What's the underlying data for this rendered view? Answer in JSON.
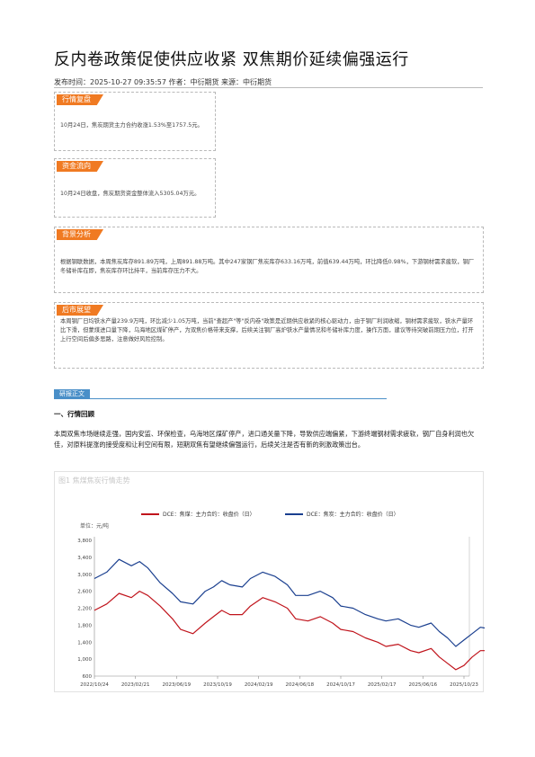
{
  "title": "反内卷政策促使供应收紧 双焦期价延续偏强运行",
  "meta": "发布时间：2025-10-27 09:35:57 作者：中衍期货 来源：中衍期货",
  "boxes": {
    "market_review": {
      "tag": "行情复盘",
      "text": "10月24日，焦炭期货主力合约收涨1.53%至1757.5元。"
    },
    "capital_flow": {
      "tag": "资金流向",
      "text": "10月24日收盘，焦炭期货资金整体流入5305.04万元。"
    },
    "background": {
      "tag": "背景分析",
      "text": "根据钢联数据，本周焦炭库存891.89万吨，上周891.88万吨。其中247家钢厂焦炭库存633.16万吨，前值639.44万吨，环比降低0.98%，下游钢材需求疲软，钢厂冬储补库在即，焦炭库存环比持平，当前库存压力不大。"
    },
    "outlook": {
      "tag": "后市展望",
      "text": "本周钢厂日均铁水产量239.9万吨，环比减少1.05万吨，当前\"查超产\"等\"反内卷\"政策是近期供应收紧的核心驱动力，由于钢厂利润收缩，钢材需求疲软，铁水产量环比下滑，但蒙煤进口量下降，乌海地区煤矿停产，为双焦价格带来支撑，后续关注钢厂高炉铁水产量情况和冬储补库力度，操作方面，建议等待突破前期压力位，打开上行空间后偏多思路，注意做好风险控制。"
    }
  },
  "section_tab": "研报正文",
  "section_title": "一、行情回顾",
  "body": "本周双焦市场继续走强，国内安监、环保检查，乌海地区煤矿停产，进口通关量下降，导致供应端偏紧，下游终端钢材需求疲软，钢厂自身利润也欠佳，对原料提涨的接受度和让利空间有限，短期双焦有望继续偏强运行，后续关注是否有新的刺激政策出台。",
  "chart_data": {
    "type": "line",
    "title": "图1 焦煤焦炭行情走势",
    "unit_label": "单位：元/吨",
    "x_tick_labels": [
      "2022/10/24",
      "2023/02/21",
      "2023/06/19",
      "2023/10/19",
      "2024/02/19",
      "2024/06/18",
      "2024/10/17",
      "2025/02/17",
      "2025/06/16",
      "2025/10/23"
    ],
    "ylim": [
      600,
      3800
    ],
    "y_tick_labels": [
      "600",
      "800",
      "1,000",
      "1,200",
      "1,400",
      "1,600",
      "1,800",
      "2,000",
      "2,200",
      "2,400",
      "2,600",
      "2,800",
      "3,000",
      "3,200",
      "3,400",
      "3,600",
      "3,800"
    ],
    "grid": false,
    "legend_position": "top",
    "series": [
      {
        "name": "DCE：焦煤：主力合约：收盘价（日）",
        "color": "#c0141c",
        "x_ticks": [
          0,
          0.3,
          0.6,
          0.9,
          1.1,
          1.3,
          1.6,
          1.9,
          2.1,
          2.4,
          2.7,
          2.9,
          3.1,
          3.3,
          3.6,
          3.8,
          4.1,
          4.4,
          4.7,
          4.9,
          5.2,
          5.5,
          5.8,
          6.0,
          6.3,
          6.6,
          6.9,
          7.1,
          7.4,
          7.7,
          7.9,
          8.2,
          8.4,
          8.6,
          8.8,
          9.0,
          9.2,
          9.4,
          9.7,
          10.0
        ],
        "values": [
          2150,
          2300,
          2550,
          2450,
          2600,
          2500,
          2250,
          1950,
          1700,
          1600,
          1850,
          2000,
          2150,
          2050,
          2050,
          2250,
          2450,
          2350,
          2200,
          1950,
          1900,
          2000,
          1850,
          1700,
          1650,
          1500,
          1400,
          1300,
          1350,
          1200,
          1150,
          1250,
          1050,
          900,
          750,
          850,
          1050,
          1200,
          1200,
          1300
        ]
      },
      {
        "name": "DCE：焦炭：主力合约：收盘价（日）",
        "color": "#1a3f8f",
        "x_ticks": [
          0,
          0.3,
          0.6,
          0.9,
          1.1,
          1.3,
          1.6,
          1.9,
          2.1,
          2.4,
          2.7,
          2.9,
          3.1,
          3.3,
          3.6,
          3.8,
          4.1,
          4.4,
          4.7,
          4.9,
          5.2,
          5.5,
          5.8,
          6.0,
          6.3,
          6.6,
          6.9,
          7.1,
          7.4,
          7.7,
          7.9,
          8.2,
          8.4,
          8.6,
          8.8,
          9.0,
          9.2,
          9.4,
          9.7,
          10.0
        ],
        "values": [
          2900,
          3050,
          3350,
          3200,
          3300,
          3150,
          2800,
          2550,
          2350,
          2300,
          2600,
          2700,
          2850,
          2750,
          2700,
          2900,
          3050,
          2950,
          2750,
          2500,
          2500,
          2600,
          2450,
          2250,
          2200,
          2050,
          1950,
          1900,
          1950,
          1800,
          1750,
          1850,
          1650,
          1500,
          1300,
          1450,
          1600,
          1750,
          1700,
          1800
        ]
      }
    ]
  }
}
